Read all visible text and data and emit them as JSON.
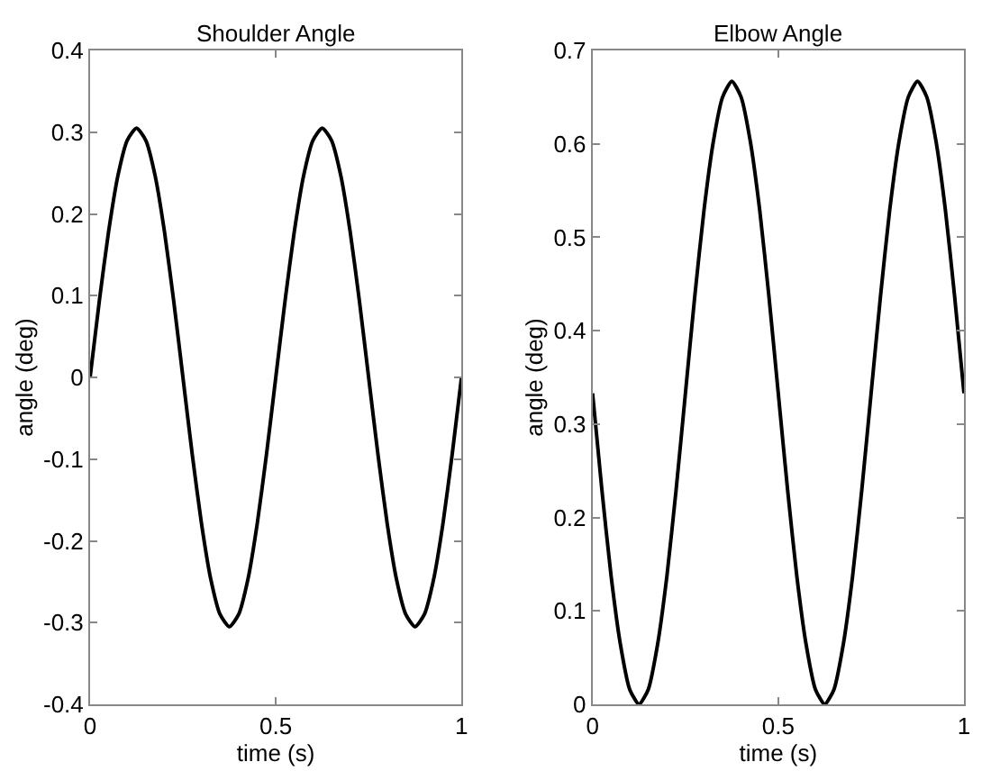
{
  "chart_data": [
    {
      "type": "line",
      "title": "Shoulder Angle",
      "xlabel": "time (s)",
      "ylabel": "angle (deg)",
      "x": [
        0,
        0.025,
        0.05,
        0.075,
        0.1,
        0.125,
        0.15,
        0.175,
        0.2,
        0.225,
        0.25,
        0.275,
        0.3,
        0.325,
        0.35,
        0.375,
        0.4,
        0.425,
        0.45,
        0.475,
        0.5,
        0.525,
        0.55,
        0.575,
        0.6,
        0.625,
        0.65,
        0.675,
        0.7,
        0.725,
        0.75,
        0.775,
        0.8,
        0.825,
        0.85,
        0.875,
        0.9,
        0.925,
        0.95,
        0.975,
        1
      ],
      "series": [
        {
          "color": "#000000",
          "values": [
            0,
            0.094,
            0.179,
            0.247,
            0.29,
            0.305,
            0.29,
            0.247,
            0.179,
            0.094,
            0,
            -0.094,
            -0.179,
            -0.247,
            -0.29,
            -0.305,
            -0.29,
            -0.247,
            -0.179,
            -0.094,
            0,
            0.094,
            0.179,
            0.247,
            0.29,
            0.305,
            0.29,
            0.247,
            0.179,
            0.094,
            0,
            -0.094,
            -0.179,
            -0.247,
            -0.29,
            -0.305,
            -0.29,
            -0.247,
            -0.179,
            -0.094,
            0
          ]
        }
      ],
      "xlim": [
        0,
        1
      ],
      "xticks": [
        0,
        0.5,
        1
      ],
      "ylim": [
        -0.4,
        0.4
      ],
      "yticks": [
        -0.4,
        -0.3,
        -0.2,
        -0.1,
        0,
        0.1,
        0.2,
        0.3,
        0.4
      ],
      "marker": "none",
      "line_style": "solid"
    },
    {
      "type": "line",
      "title": "Elbow Angle",
      "xlabel": "time (s)",
      "ylabel": "angle (deg)",
      "x": [
        0,
        0.025,
        0.05,
        0.075,
        0.1,
        0.125,
        0.15,
        0.175,
        0.2,
        0.225,
        0.25,
        0.275,
        0.3,
        0.325,
        0.35,
        0.375,
        0.4,
        0.425,
        0.45,
        0.475,
        0.5,
        0.525,
        0.55,
        0.575,
        0.6,
        0.625,
        0.65,
        0.675,
        0.7,
        0.725,
        0.75,
        0.775,
        0.8,
        0.825,
        0.85,
        0.875,
        0.9,
        0.925,
        0.95,
        0.975,
        1
      ],
      "series": [
        {
          "color": "#000000",
          "values": [
            0.333,
            0.23,
            0.137,
            0.064,
            0.016,
            0,
            0.016,
            0.064,
            0.137,
            0.23,
            0.333,
            0.436,
            0.529,
            0.602,
            0.65,
            0.667,
            0.65,
            0.602,
            0.529,
            0.436,
            0.333,
            0.23,
            0.137,
            0.064,
            0.016,
            0,
            0.016,
            0.064,
            0.137,
            0.23,
            0.333,
            0.436,
            0.529,
            0.602,
            0.65,
            0.667,
            0.65,
            0.602,
            0.529,
            0.436,
            0.333
          ]
        }
      ],
      "xlim": [
        0,
        1
      ],
      "xticks": [
        0,
        0.5,
        1
      ],
      "ylim": [
        0,
        0.7
      ],
      "yticks": [
        0,
        0.1,
        0.2,
        0.3,
        0.4,
        0.5,
        0.6,
        0.7
      ],
      "marker": "none",
      "line_style": "solid"
    }
  ]
}
